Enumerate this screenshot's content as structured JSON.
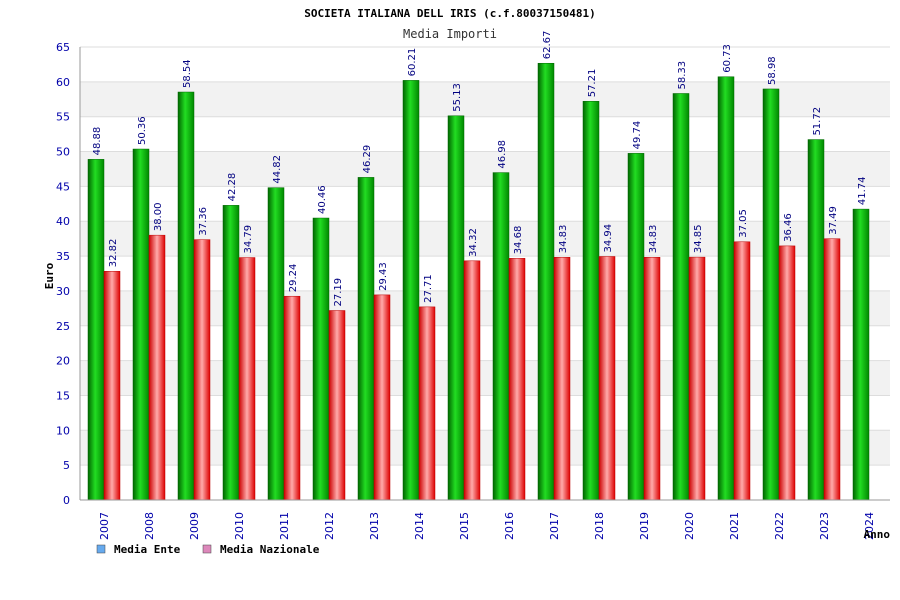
{
  "chart_data": {
    "type": "bar",
    "title": "SOCIETA ITALIANA DELL IRIS (c.f.80037150481)",
    "subtitle": "Media Importi",
    "xlabel": "Anno",
    "ylabel": "Euro",
    "ylim": [
      0,
      65
    ],
    "ytick_step": 5,
    "grid": true,
    "legend_position": "bottom-left",
    "categories": [
      "2007",
      "2008",
      "2009",
      "2010",
      "2011",
      "2012",
      "2013",
      "2014",
      "2015",
      "2016",
      "2017",
      "2018",
      "2019",
      "2020",
      "2021",
      "2022",
      "2023",
      "2024"
    ],
    "series": [
      {
        "name": "Media Ente",
        "legend_color": "#66aaee",
        "bar_color": "#00bb00",
        "values": [
          48.88,
          50.36,
          58.54,
          42.28,
          44.82,
          40.46,
          46.29,
          60.21,
          55.13,
          46.98,
          62.67,
          57.21,
          49.74,
          58.33,
          60.73,
          58.98,
          51.72,
          41.74
        ],
        "labels": [
          "48.88",
          "50.36",
          "58.54",
          "42.28",
          "44.82",
          "40.46",
          "46.29",
          "60.21",
          "55.13",
          "46.98",
          "62.67",
          "57.21",
          "49.74",
          "58.33",
          "60.73",
          "58.98",
          "51.72",
          "41.74"
        ]
      },
      {
        "name": "Media Nazionale",
        "legend_color": "#dd88bb",
        "bar_color": "#ee2222",
        "values": [
          32.82,
          38.0,
          37.36,
          34.79,
          29.24,
          27.19,
          29.43,
          27.71,
          34.32,
          34.68,
          34.83,
          34.94,
          34.83,
          34.85,
          37.05,
          36.46,
          37.49,
          null
        ],
        "labels": [
          "32.82",
          "38.00",
          "37.36",
          "34.79",
          "29.24",
          "27.19",
          "29.43",
          "27.71",
          "34.32",
          "34.68",
          "34.83",
          "34.94",
          "34.83",
          "34.85",
          "37.05",
          "36.46",
          "37.49",
          null
        ]
      }
    ]
  }
}
